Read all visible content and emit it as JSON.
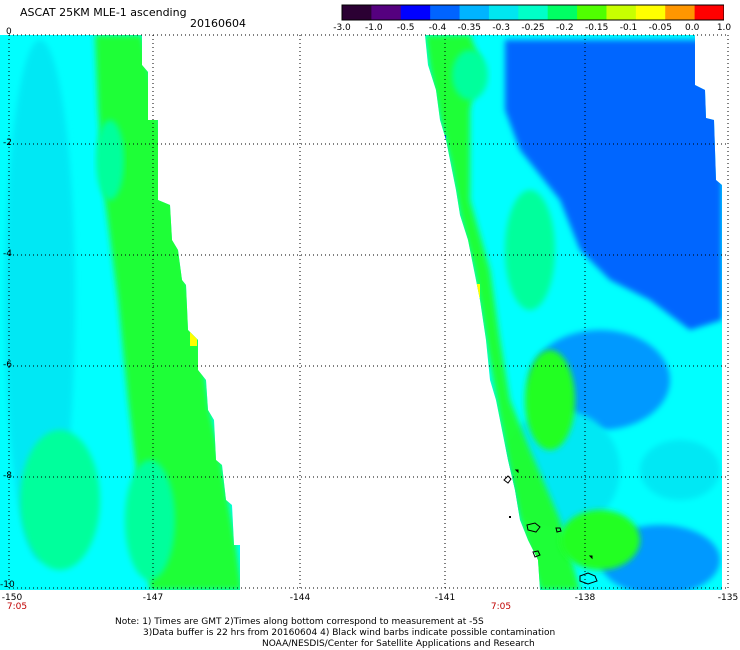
{
  "header": {
    "title": "ASCAT 25KM MLE-1 ascending",
    "date": "20160604"
  },
  "colorbar": {
    "labels": [
      "-3.0",
      "-1.0",
      "-0.5",
      "-0.4",
      "-0.35",
      "-0.3",
      "-0.25",
      "-0.2",
      "-0.15",
      "-0.1",
      "-0.05",
      "0.0",
      "1.0"
    ],
    "colors": [
      "#2b0033",
      "#55007f",
      "#0000ff",
      "#0064ff",
      "#00b4ff",
      "#00e6f0",
      "#00ffc8",
      "#00ff64",
      "#50ff00",
      "#c8ff00",
      "#ffff00",
      "#ff9600",
      "#ff0000"
    ]
  },
  "map": {
    "y_labels": [
      "0",
      "-2",
      "-4",
      "-6",
      "-8",
      "-10"
    ],
    "x_labels": [
      "-150",
      "-147",
      "-144",
      "-141",
      "-138",
      "-135"
    ],
    "time_labels": [
      "7:05",
      "7:05"
    ],
    "colors": {
      "cyan": "#00ffff",
      "aqua": "#00e8f4",
      "sea_green": "#00ff9c",
      "green": "#20ff20",
      "blue": "#0066ff",
      "sky": "#0099ff",
      "yellow": "#ffff00"
    }
  },
  "notes": {
    "line1": "Note: 1) Times are GMT 2)Times along bottom correspond to measurement at -5S",
    "line2": "3)Data buffer is 22 hrs from 20160604 4) Black wind barbs indicate possible contamination",
    "line3": "NOAA/NESDIS/Center for Satellite Applications and Research"
  }
}
